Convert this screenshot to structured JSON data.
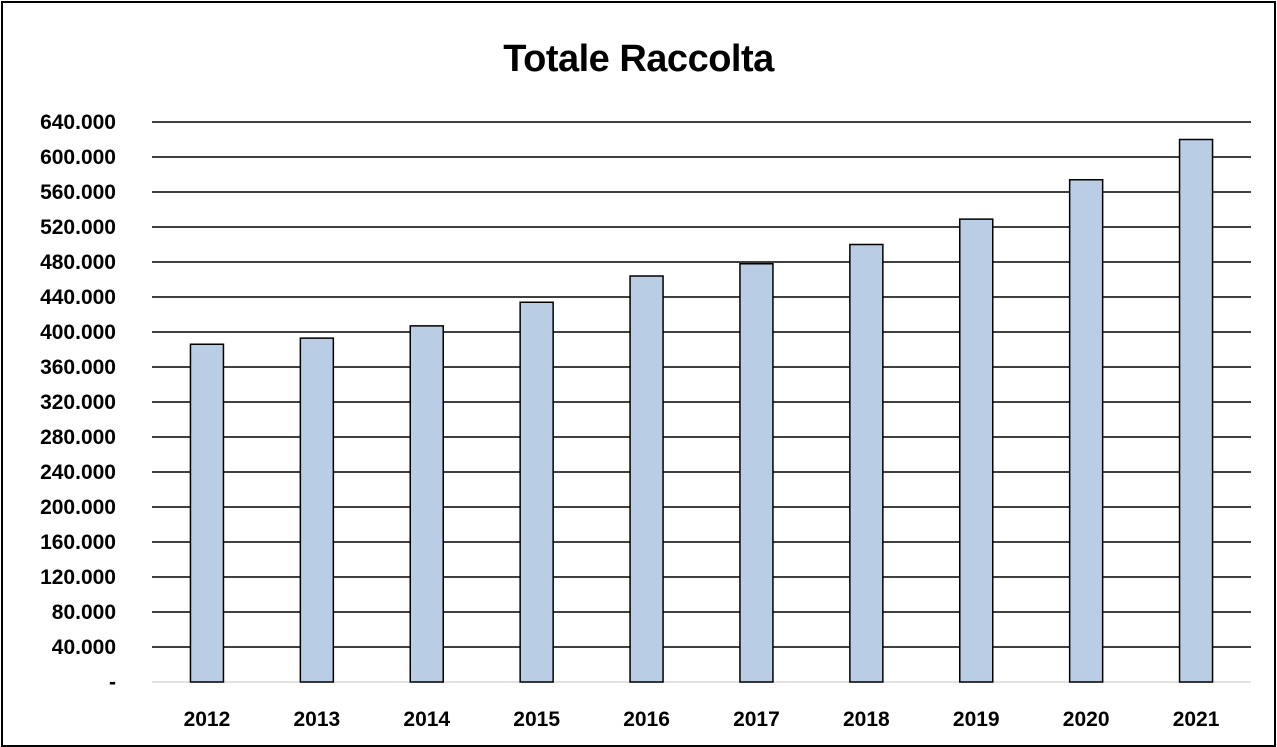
{
  "chart_data": {
    "type": "bar",
    "title": "Totale Raccolta",
    "xlabel": "",
    "ylabel": "",
    "categories": [
      "2012",
      "2013",
      "2014",
      "2015",
      "2016",
      "2017",
      "2018",
      "2019",
      "2020",
      "2021"
    ],
    "series": [
      {
        "values": [
          386000,
          393000,
          407000,
          434000,
          464000,
          478000,
          500000,
          529000,
          574000,
          620000
        ]
      }
    ],
    "ylim": [
      0,
      640000
    ],
    "yticks": [
      0,
      40000,
      80000,
      120000,
      160000,
      200000,
      240000,
      280000,
      320000,
      360000,
      400000,
      440000,
      480000,
      520000,
      560000,
      600000,
      640000
    ],
    "ytick_labels": [
      "-",
      "40.000",
      "80.000",
      "120.000",
      "160.000",
      "200.000",
      "240.000",
      "280.000",
      "320.000",
      "360.000",
      "400.000",
      "440.000",
      "480.000",
      "520.000",
      "560.000",
      "600.000",
      "640.000"
    ],
    "grid": true,
    "legend": "none",
    "colors": {
      "bar_fill": "#b9cde5",
      "bar_stroke": "#000000",
      "grid": "#000000",
      "text": "#000000"
    }
  }
}
